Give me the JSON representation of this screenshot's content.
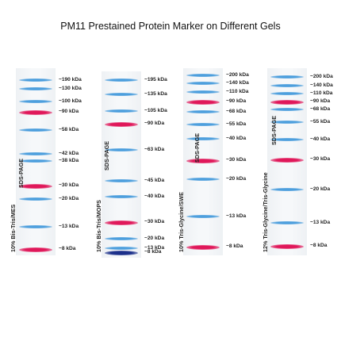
{
  "title": "PM11 Prestained Protein Marker on Different Gels",
  "colors": {
    "blue": "#2f8fd8",
    "red": "#e0185a",
    "darkblue": "#1b2f8a"
  },
  "panels": [
    {
      "gel_label": "10% Bis-Tris/MES",
      "buffer_label": "SDS-PAGE",
      "bands": [
        {
          "label": "~190 kDa",
          "color": "blue"
        },
        {
          "label": "~130 kDa",
          "color": "blue"
        },
        {
          "label": "~100 kDa",
          "color": "blue"
        },
        {
          "label": "~90 kDa",
          "color": "red"
        },
        {
          "label": "~58 kDa",
          "color": "blue"
        },
        {
          "label": "~42 kDa",
          "color": "blue"
        },
        {
          "label": "~38 kDa",
          "color": "blue"
        },
        {
          "label": "~30 kDa",
          "color": "red"
        },
        {
          "label": "~20 kDa",
          "color": "blue"
        },
        {
          "label": "~13 kDa",
          "color": "blue"
        },
        {
          "label": "~8 kDa",
          "color": "red"
        }
      ]
    },
    {
      "gel_label": "10% Bis-Tris/MOPS",
      "buffer_label": "SDS-PAGE",
      "bands": [
        {
          "label": "~195 kDa",
          "color": "blue"
        },
        {
          "label": "~135 kDa",
          "color": "blue"
        },
        {
          "label": "~105 kDa",
          "color": "blue"
        },
        {
          "label": "~90 kDa",
          "color": "red"
        },
        {
          "label": "~63 kDa",
          "color": "blue"
        },
        {
          "label": "~45 kDa",
          "color": "blue"
        },
        {
          "label": "~40 kDa",
          "color": "blue"
        },
        {
          "label": "~30 kDa",
          "color": "red"
        },
        {
          "label": "~20 kDa",
          "color": "blue"
        },
        {
          "label": "~13 kDa",
          "color": "blue"
        },
        {
          "label": "~8 kDa",
          "color": "red"
        }
      ]
    },
    {
      "gel_label": "10% Tris-Glycine/SWE",
      "buffer_label": "SDS-PAGE",
      "bands": [
        {
          "label": "~200 kDa",
          "color": "blue"
        },
        {
          "label": "~140 kDa",
          "color": "blue"
        },
        {
          "label": "~110 kDa",
          "color": "blue"
        },
        {
          "label": "~90 kDa",
          "color": "red"
        },
        {
          "label": "~68 kDa",
          "color": "blue"
        },
        {
          "label": "~55 kDa",
          "color": "blue"
        },
        {
          "label": "~40 kDa",
          "color": "blue"
        },
        {
          "label": "~30 kDa",
          "color": "red"
        },
        {
          "label": "~20 kDa",
          "color": "blue"
        },
        {
          "label": "~13 kDa",
          "color": "blue"
        },
        {
          "label": "~8 kDa",
          "color": "red"
        }
      ]
    },
    {
      "gel_label": "12% Tris-Glycine/Tris-Glycine",
      "buffer_label": "SDS-PAGE",
      "bands": [
        {
          "label": "~200 kDa",
          "color": "blue"
        },
        {
          "label": "~140 kDa",
          "color": "blue"
        },
        {
          "label": "~110 kDa",
          "color": "blue"
        },
        {
          "label": "~90 kDa",
          "color": "red"
        },
        {
          "label": "~68 kDa",
          "color": "blue"
        },
        {
          "label": "~55 kDa",
          "color": "blue"
        },
        {
          "label": "~40 kDa",
          "color": "blue"
        },
        {
          "label": "~30 kDa",
          "color": "red"
        },
        {
          "label": "~20 kDa",
          "color": "blue"
        },
        {
          "label": "~13 kDa",
          "color": "blue"
        },
        {
          "label": "~8 kDa",
          "color": "red"
        }
      ]
    }
  ]
}
